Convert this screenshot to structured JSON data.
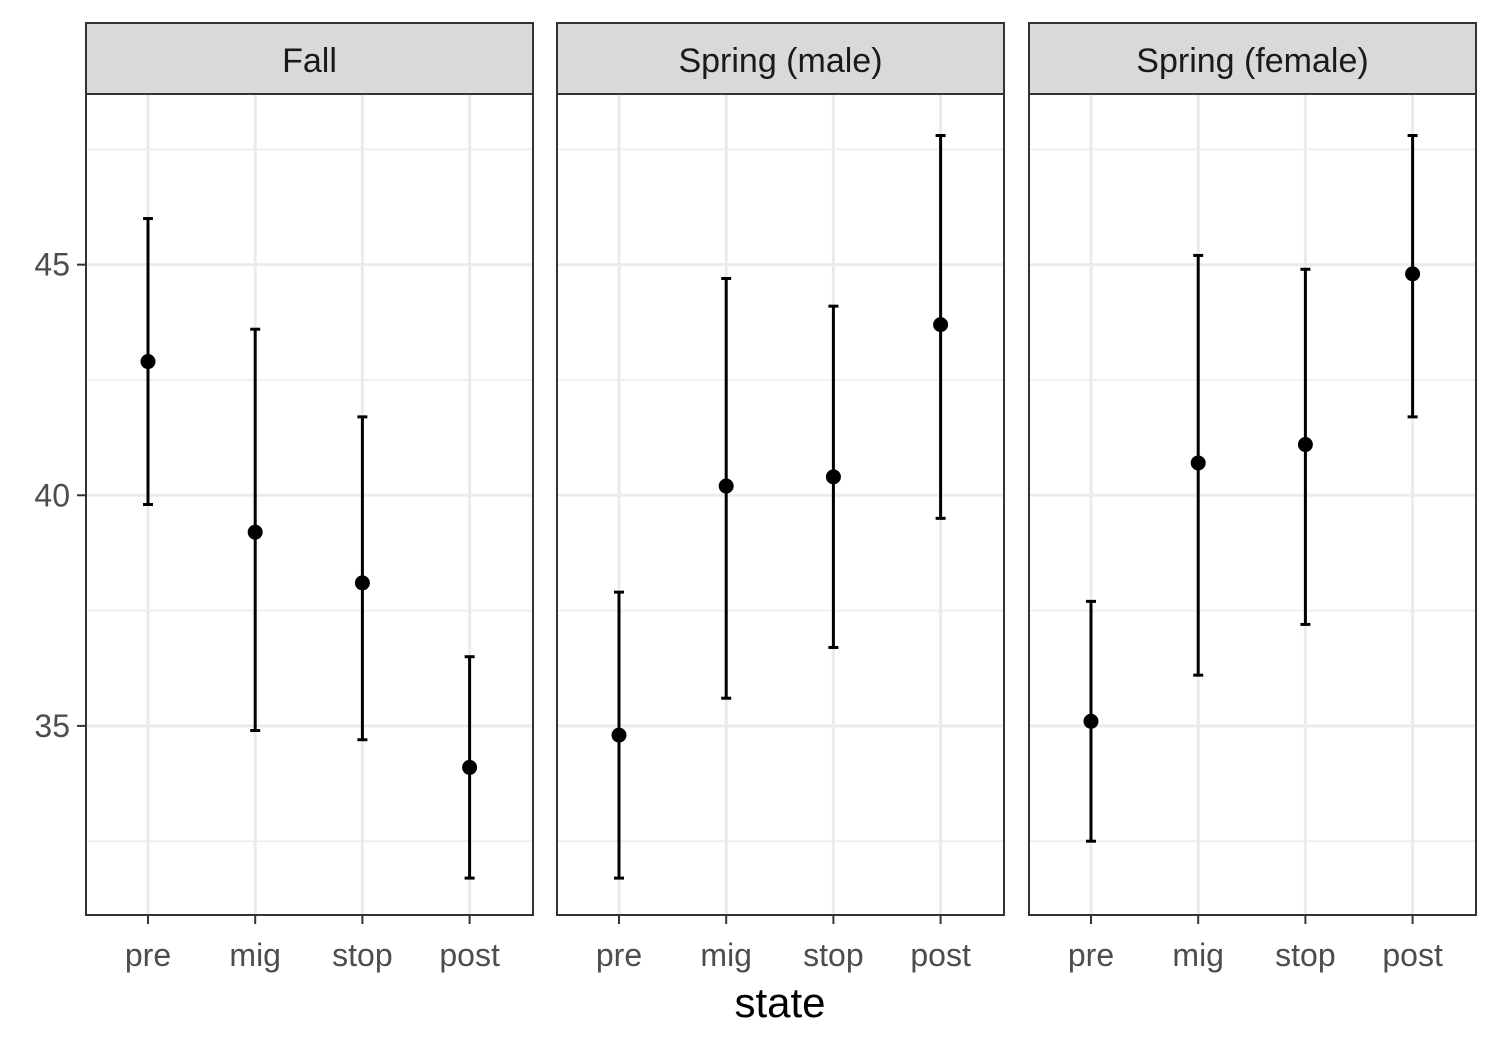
{
  "chart_data": {
    "type": "scatter",
    "facets": [
      "Fall",
      "Spring (male)",
      "Spring (female)"
    ],
    "categories": [
      "pre",
      "mig",
      "stop",
      "post"
    ],
    "xlabel": "state",
    "ylabel": "",
    "ylim": [
      30.9,
      48.7
    ],
    "y_ticks": [
      35,
      40,
      45
    ],
    "grid": true,
    "series": [
      {
        "facet": "Fall",
        "values": [
          42.9,
          39.2,
          38.1,
          34.1
        ],
        "lower": [
          39.8,
          34.9,
          34.7,
          31.7
        ],
        "upper": [
          46.0,
          43.6,
          41.7,
          36.5
        ]
      },
      {
        "facet": "Spring (male)",
        "values": [
          34.8,
          40.2,
          40.4,
          43.7
        ],
        "lower": [
          31.7,
          35.6,
          36.7,
          39.5
        ],
        "upper": [
          37.9,
          44.7,
          44.1,
          47.8
        ]
      },
      {
        "facet": "Spring (female)",
        "values": [
          35.1,
          40.7,
          41.1,
          44.8
        ],
        "lower": [
          32.5,
          36.1,
          37.2,
          41.7
        ],
        "upper": [
          37.7,
          45.2,
          44.9,
          47.8
        ]
      }
    ]
  }
}
